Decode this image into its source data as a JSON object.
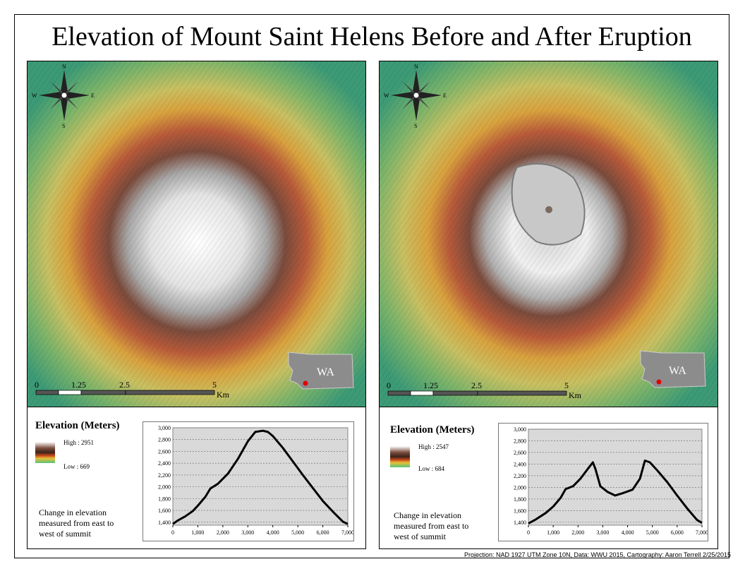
{
  "title": "Elevation of Mount Saint Helens Before and After Eruption",
  "credit": "Projection: NAD 1927 UTM Zone 10N, Data: WWU 2015, Cartography: Aaron Terrell 2/25/2015",
  "colors": {
    "low": "#4aaa6e",
    "mid": "#d9b24a",
    "brown": "#6e3c2a",
    "high": "#f2f2f2",
    "marker": "#e00000",
    "state": "#8c8c8c"
  },
  "compass": {
    "n": "N",
    "s": "S",
    "e": "E",
    "w": "W"
  },
  "state_label": "WA",
  "scale": {
    "labels": [
      "0",
      "1.25",
      "2.5",
      "5"
    ],
    "unit": "Km"
  },
  "panels": [
    {
      "id": "before",
      "legend_title": "Elevation (Meters)",
      "high_label": "High : 2951",
      "low_label": "Low : 669",
      "note": "Change in elevation measured from east to west of summit"
    },
    {
      "id": "after",
      "legend_title": "Elevation (Meters)",
      "high_label": "High : 2547",
      "low_label": "Low : 684",
      "note": "Change in elevation measured from east to west of summit"
    }
  ],
  "chart_data": [
    {
      "type": "line",
      "title": "",
      "x": [
        0,
        200,
        500,
        800,
        1000,
        1300,
        1500,
        1800,
        2200,
        2600,
        3000,
        3300,
        3600,
        3800,
        4000,
        4400,
        4800,
        5200,
        5600,
        6000,
        6400,
        6800,
        7000
      ],
      "y": [
        1370,
        1430,
        1500,
        1590,
        1680,
        1830,
        1970,
        2050,
        2220,
        2470,
        2770,
        2930,
        2950,
        2930,
        2860,
        2660,
        2430,
        2200,
        1980,
        1760,
        1580,
        1410,
        1370
      ],
      "xticks": [
        "0",
        "1,000",
        "2,000",
        "3,000",
        "4,000",
        "5,000",
        "6,000",
        "7,000"
      ],
      "yticks": [
        "1,400",
        "1,600",
        "1,800",
        "2,000",
        "2,200",
        "2,400",
        "2,600",
        "2,800",
        "3,000"
      ],
      "xlim": [
        0,
        7000
      ],
      "ylim": [
        1350,
        3000
      ]
    },
    {
      "type": "line",
      "title": "",
      "x": [
        0,
        300,
        700,
        1000,
        1300,
        1500,
        1800,
        2100,
        2400,
        2600,
        2700,
        2900,
        3200,
        3500,
        3800,
        4200,
        4500,
        4700,
        4900,
        5200,
        5600,
        6000,
        6400,
        6800,
        7000
      ],
      "y": [
        1380,
        1450,
        1560,
        1670,
        1820,
        1970,
        2020,
        2150,
        2320,
        2430,
        2320,
        2020,
        1920,
        1860,
        1900,
        1960,
        2150,
        2460,
        2430,
        2290,
        2090,
        1860,
        1640,
        1440,
        1390
      ],
      "xticks": [
        "0",
        "1,000",
        "2,000",
        "3,000",
        "4,000",
        "5,000",
        "6,000",
        "7,000"
      ],
      "yticks": [
        "1,400",
        "1,600",
        "1,800",
        "2,000",
        "2,200",
        "2,400",
        "2,600",
        "2,800",
        "3,000"
      ],
      "xlim": [
        0,
        7000
      ],
      "ylim": [
        1350,
        3000
      ]
    }
  ]
}
